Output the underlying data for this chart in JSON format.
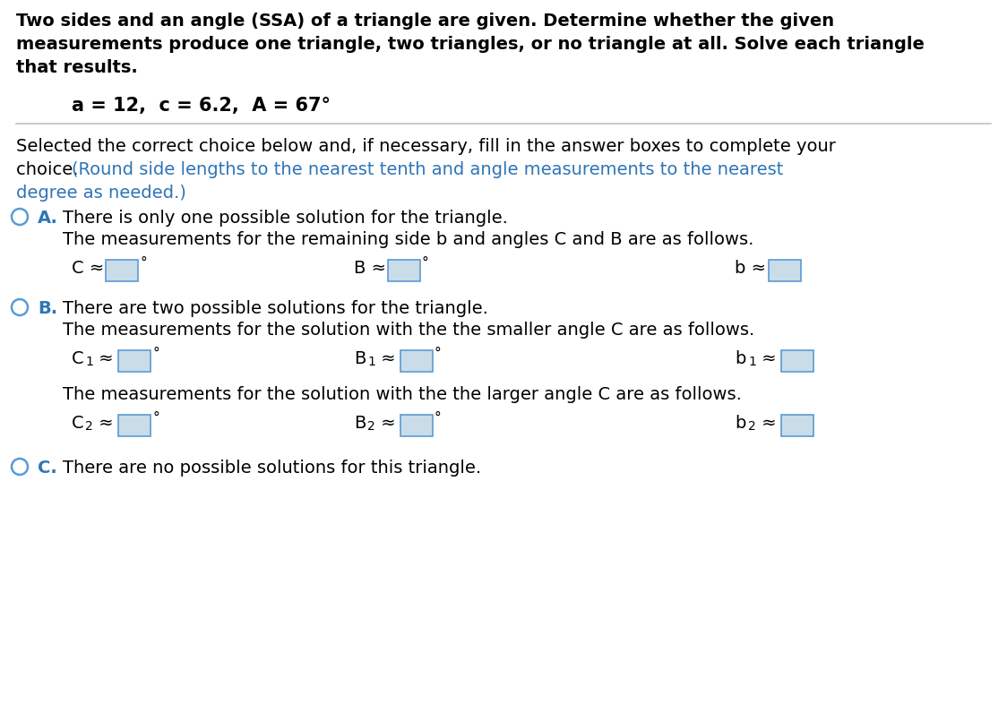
{
  "bg_color": "#ffffff",
  "black_text_color": "#000000",
  "blue_text_color": "#2e75b6",
  "label_color": "#2e75b6",
  "radio_color": "#5b9bd5",
  "box_fill": "#c9dce8",
  "box_edge": "#5b9bd5",
  "line_color": "#c0c0c0",
  "title_line1": "Two sides and an angle (SSA) of a triangle are given. Determine whether the given",
  "title_line2": "measurements produce one triangle, two triangles, or no triangle at all. Solve each triangle",
  "title_line3": "that results.",
  "given_text": "a = 12,  c = 6.2,  A = 67°",
  "inst_black_line1": "Selected the correct choice below and, if necessary, fill in the answer boxes to complete your",
  "inst_black_line2": "choice. ",
  "inst_blue_inline": "(Round side lengths to the nearest tenth and angle measurements to the nearest",
  "inst_blue_line2": "degree as needed.)",
  "optA_line1": "There is only one possible solution for the triangle.",
  "optA_line2": "The measurements for the remaining side b and angles C and B are as follows.",
  "optB_line1": "There are two possible solutions for the triangle.",
  "optB_line2": "The measurements for the solution with the the smaller angle C are as follows.",
  "optB_line3": "The measurements for the solution with the the larger angle C are as follows.",
  "optC_line1": "There are no possible solutions for this triangle.",
  "font_size_main": 13.5,
  "font_size_given": 14.5,
  "font_size_sub": 10,
  "radio_r": 9
}
